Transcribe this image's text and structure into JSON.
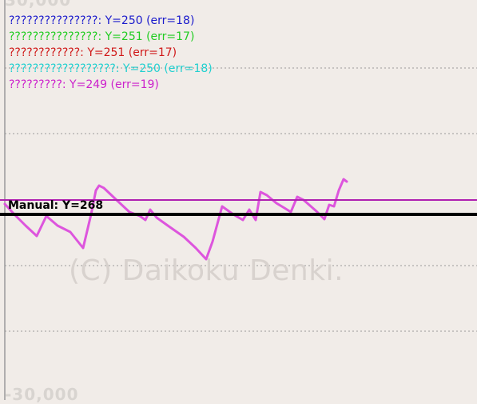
{
  "axis": {
    "top_label": "30,000",
    "bottom_label": "-30,000"
  },
  "legend": [
    {
      "text": "???????????????: Y=250 (err=18)",
      "color": "#1a1acc"
    },
    {
      "text": "???????????????: Y=251 (err=17)",
      "color": "#22cc22"
    },
    {
      "text": "????????????: Y=251 (err=17)",
      "color": "#d01818"
    },
    {
      "text": "??????????????????: Y=250 (err=18)",
      "color": "#22d0d0"
    },
    {
      "text": "?????????: Y=249 (err=19)",
      "color": "#cc22cc"
    }
  ],
  "manual": {
    "label": "Manual: Y=268",
    "color": "#000000"
  },
  "watermark": "(C) Daikoku Denki.",
  "colors": {
    "background": "#f1ece8",
    "curve": "#dd55dd",
    "gridline": "#9a9a9a",
    "estimate_line": "#b020b0"
  }
}
